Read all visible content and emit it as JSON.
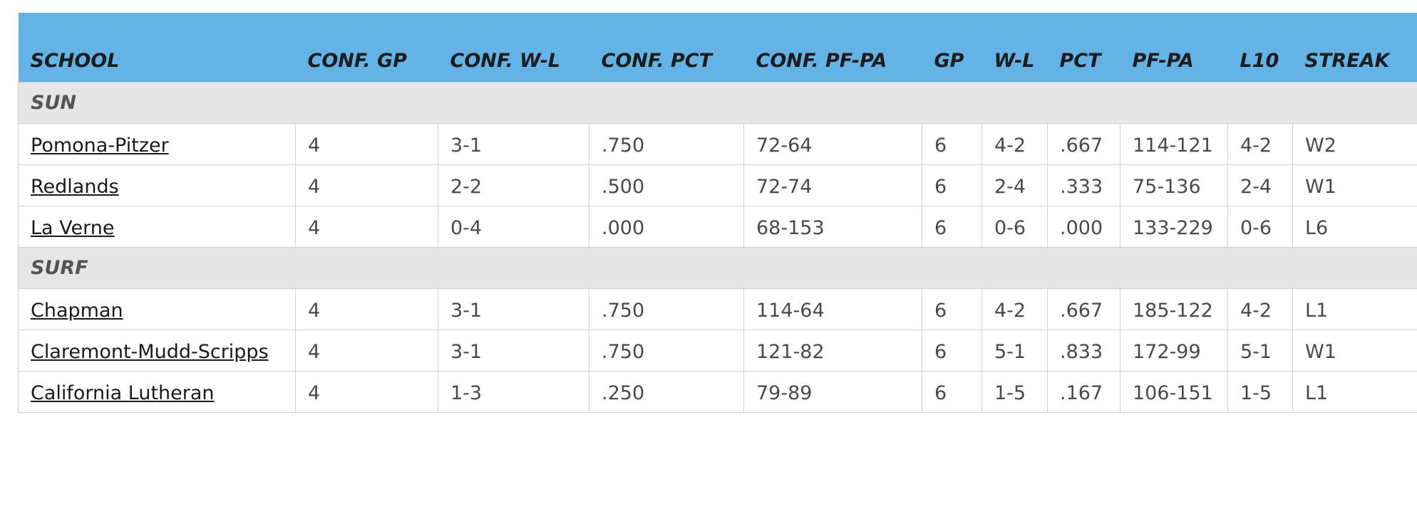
{
  "table": {
    "headers": [
      "SCHOOL",
      "CONF. GP",
      "CONF. W-L",
      "CONF. PCT",
      "CONF. PF-PA",
      "GP",
      "W-L",
      "PCT",
      "PF-PA",
      "L10",
      "STREAK"
    ],
    "groups": [
      {
        "name": "SUN",
        "rows": [
          [
            "Pomona-Pitzer",
            "4",
            "3-1",
            ".750",
            "72-64",
            "6",
            "4-2",
            ".667",
            "114-121",
            "4-2",
            "W2"
          ],
          [
            "Redlands",
            "4",
            "2-2",
            ".500",
            "72-74",
            "6",
            "2-4",
            ".333",
            "75-136",
            "2-4",
            "W1"
          ],
          [
            "La Verne",
            "4",
            "0-4",
            ".000",
            "68-153",
            "6",
            "0-6",
            ".000",
            "133-229",
            "0-6",
            "L6"
          ]
        ]
      },
      {
        "name": "SURF",
        "rows": [
          [
            "Chapman",
            "4",
            "3-1",
            ".750",
            "114-64",
            "6",
            "4-2",
            ".667",
            "185-122",
            "4-2",
            "L1"
          ],
          [
            "Claremont-Mudd-Scripps",
            "4",
            "3-1",
            ".750",
            "121-82",
            "6",
            "5-1",
            ".833",
            "172-99",
            "5-1",
            "W1"
          ],
          [
            "California Lutheran",
            "4",
            "1-3",
            ".250",
            "79-89",
            "6",
            "1-5",
            ".167",
            "106-151",
            "1-5",
            "L1"
          ]
        ]
      }
    ]
  }
}
